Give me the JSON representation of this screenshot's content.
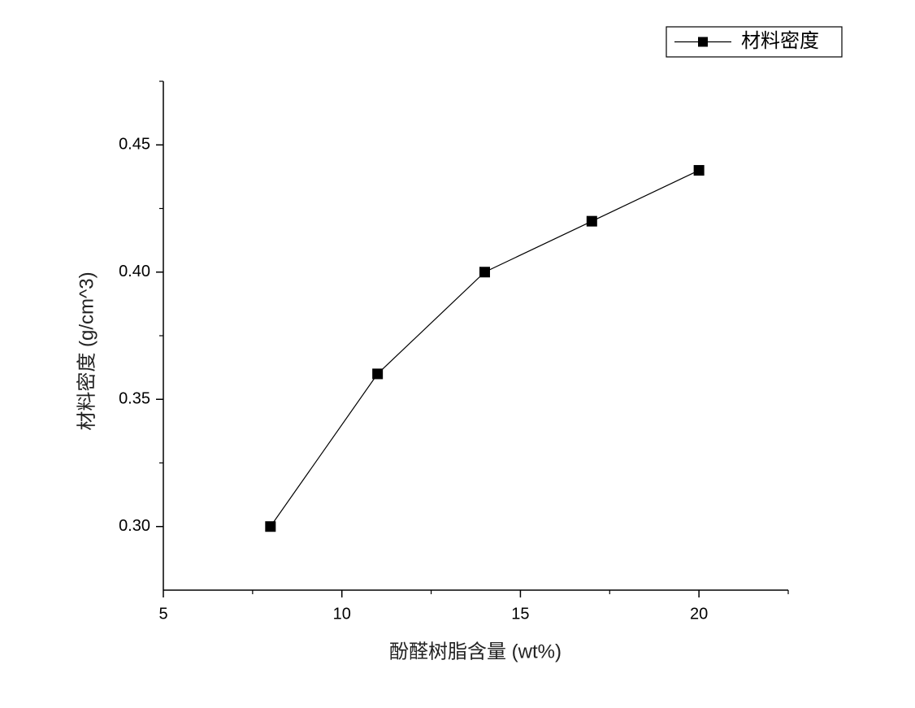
{
  "chart_data": {
    "type": "line",
    "xlabel": "酚醛树脂含量 (wt%)",
    "ylabel": "材料密度 (g/cm^3)",
    "x": [
      8,
      11,
      14,
      17,
      20
    ],
    "series": [
      {
        "name": "材料密度",
        "color": "#000000",
        "values": [
          0.3,
          0.36,
          0.4,
          0.42,
          0.44
        ]
      }
    ],
    "xlim": [
      5,
      22.5
    ],
    "xticks": [
      5,
      10,
      15,
      20
    ],
    "xminorticks": [
      7.5,
      12.5,
      17.5,
      22.5
    ],
    "ylim": [
      0.275,
      0.475
    ],
    "yticks": [
      {
        "value": 0.3,
        "label": "0.30"
      },
      {
        "value": 0.35,
        "label": "0.35"
      },
      {
        "value": 0.4,
        "label": "0.40"
      },
      {
        "value": 0.45,
        "label": "0.45"
      }
    ],
    "yminorticks": [
      0.325,
      0.375,
      0.425,
      0.475
    ],
    "legend": "top-right",
    "grid": false
  }
}
